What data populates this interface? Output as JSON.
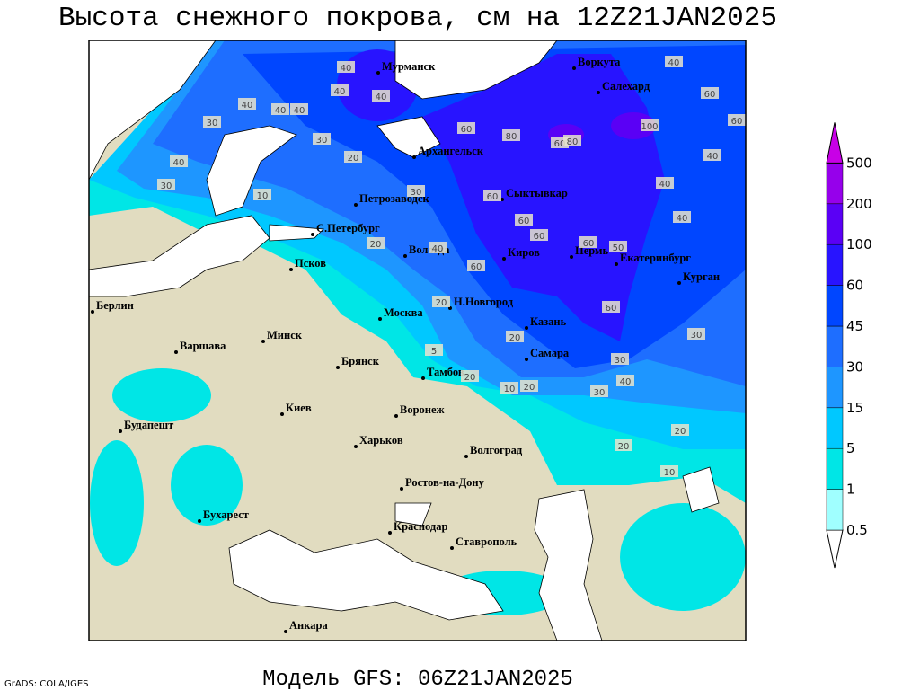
{
  "header": {
    "title": "Высота снежного покрова, см на 12Z21JAN2025"
  },
  "map": {
    "cities": [
      "Мурманск",
      "Воркута",
      "Салехард",
      "Архангельск",
      "Петрозаводск",
      "Сыктывкар",
      "С.Петербург",
      "Вологда",
      "Киров",
      "Пермь",
      "Екатеринбург",
      "Курган",
      "Псков",
      "Н.Новгород",
      "Казань",
      "Москва",
      "Минск",
      "Берлин",
      "Варшава",
      "Брянск",
      "Тамбов",
      "Самара",
      "Киев",
      "Воронеж",
      "Будапешт",
      "Харьков",
      "Волгоград",
      "Ростов-на-Дону",
      "Бухарест",
      "Краснодар",
      "Ставрополь",
      "Анкара"
    ],
    "contour_labels": [
      40,
      40,
      40,
      40,
      40,
      40,
      30,
      40,
      30,
      30,
      20,
      10,
      30,
      60,
      80,
      60,
      80,
      100,
      40,
      60,
      60,
      40,
      40,
      40,
      60,
      60,
      60,
      60,
      60,
      20,
      40,
      20,
      60,
      30,
      30,
      10,
      20,
      30,
      20,
      20,
      10,
      5,
      20,
      40,
      50,
      20
    ]
  },
  "legend": {
    "levels": [
      0.5,
      1,
      5,
      15,
      30,
      45,
      60,
      100,
      200,
      500
    ],
    "colors": [
      "#ffffff",
      "#a0ffff",
      "#00e6e6",
      "#00c8ff",
      "#1e96ff",
      "#1e6eff",
      "#0046ff",
      "#2814ff",
      "#5a00f5",
      "#9600eb",
      "#c800e6"
    ]
  },
  "footer": {
    "model": "Модель GFS: 06Z21JAN2025",
    "credit": "GrADS: COLA/IGES"
  }
}
